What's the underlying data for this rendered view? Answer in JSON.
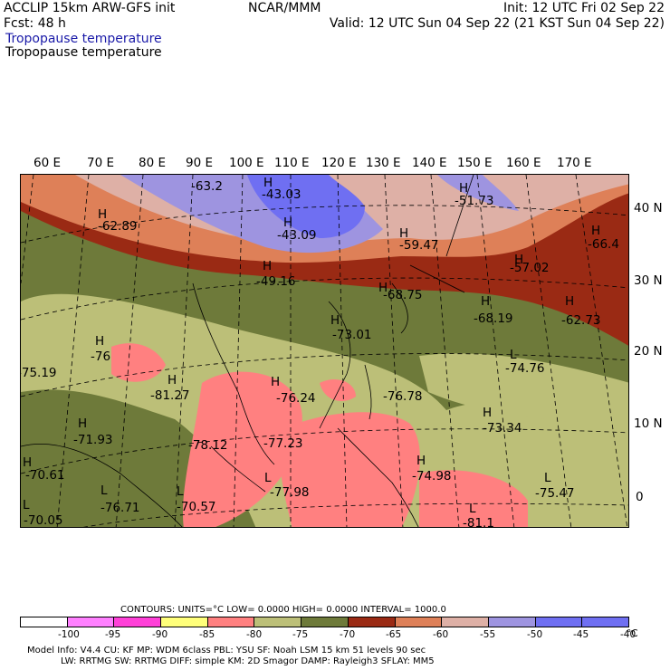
{
  "header": {
    "model": "ACCLIP 15km ARW-GFS init",
    "center": "NCAR/MMM",
    "init": "Init: 12 UTC Fri 02 Sep 22",
    "fcst": "Fcst:   48 h",
    "valid": "Valid: 12 UTC Sun 04 Sep 22 (21 KST Sun 04 Sep 22)",
    "field_blue": "Tropopause temperature",
    "field_black": "Tropopause temperature"
  },
  "map": {
    "lon_labels": [
      "60 E",
      "70 E",
      "80 E",
      "90 E",
      "100 E",
      "110 E",
      "120 E",
      "130 E",
      "140 E",
      "150 E",
      "160 E",
      "170 E"
    ],
    "lat_labels": [
      "40 N",
      "30 N",
      "20 N",
      "10 N",
      "0"
    ],
    "highs": [
      "H",
      "H",
      "H",
      "H",
      "H",
      "H",
      "H",
      "H",
      "H",
      "H",
      "H",
      "H",
      "H",
      "H",
      "H",
      "H",
      "H",
      "H"
    ],
    "lows": [
      "L",
      "L",
      "L",
      "L",
      "L",
      "L",
      "L"
    ],
    "values": [
      "-63.2",
      "-43.03",
      "-51.73",
      "-62.89",
      "-43.09",
      "-59.47",
      "-66.4",
      "-49.16",
      "-57.02",
      "-68.75",
      "-68.19",
      "-62.73",
      "-73.01",
      "-76",
      "-75.19",
      "-74.76",
      "-81.27",
      "-76.24",
      "-76.78",
      "-73.34",
      "-71.93",
      "-78.12",
      "-77.23",
      "-70.61",
      "-74.98",
      "-77.98",
      "-75.47",
      "-76.71",
      "-70.57",
      "-70.05",
      "-81.1"
    ]
  },
  "legend": {
    "contours_line": "CONTOURS:  UNITS=°C  LOW=  0.0000        HIGH=  0.0000        INTERVAL=   1000.0",
    "colors": [
      "#ffffff",
      "#ff80ff",
      "#ff40d8",
      "#ffff7a",
      "#ff8080",
      "#bcbf78",
      "#6e7a3a",
      "#9a2a14",
      "#de8058",
      "#deb0a6",
      "#9e94e0",
      "#6f6ff2",
      "#6f6ff2"
    ],
    "ticks": [
      "-100",
      "-95",
      "-90",
      "-85",
      "-80",
      "-75",
      "-70",
      "-65",
      "-60",
      "-55",
      "-50",
      "-45",
      "-40",
      "°C"
    ]
  },
  "footer": {
    "line1": "Model Info: V4.4        CU: KF        MP: WDM 6class  PBL: YSU        SF: Noah LSM        15 km     51 levels     90 sec",
    "line2": "LW: RRTMG     SW: RRTMG   DIFF: simple KM: 2D Smagor DAMP: Rayleigh3  SFLAY: MM5"
  },
  "colors": {
    "title_blue": "#1a1aa8",
    "olive_dark": "#6e7a3a",
    "olive_light": "#bcbf78",
    "pink": "#ff8080",
    "dark_red": "#9a2a14",
    "orange": "#de8058",
    "rose": "#deb0a6",
    "blue": "#6f6ff2"
  }
}
